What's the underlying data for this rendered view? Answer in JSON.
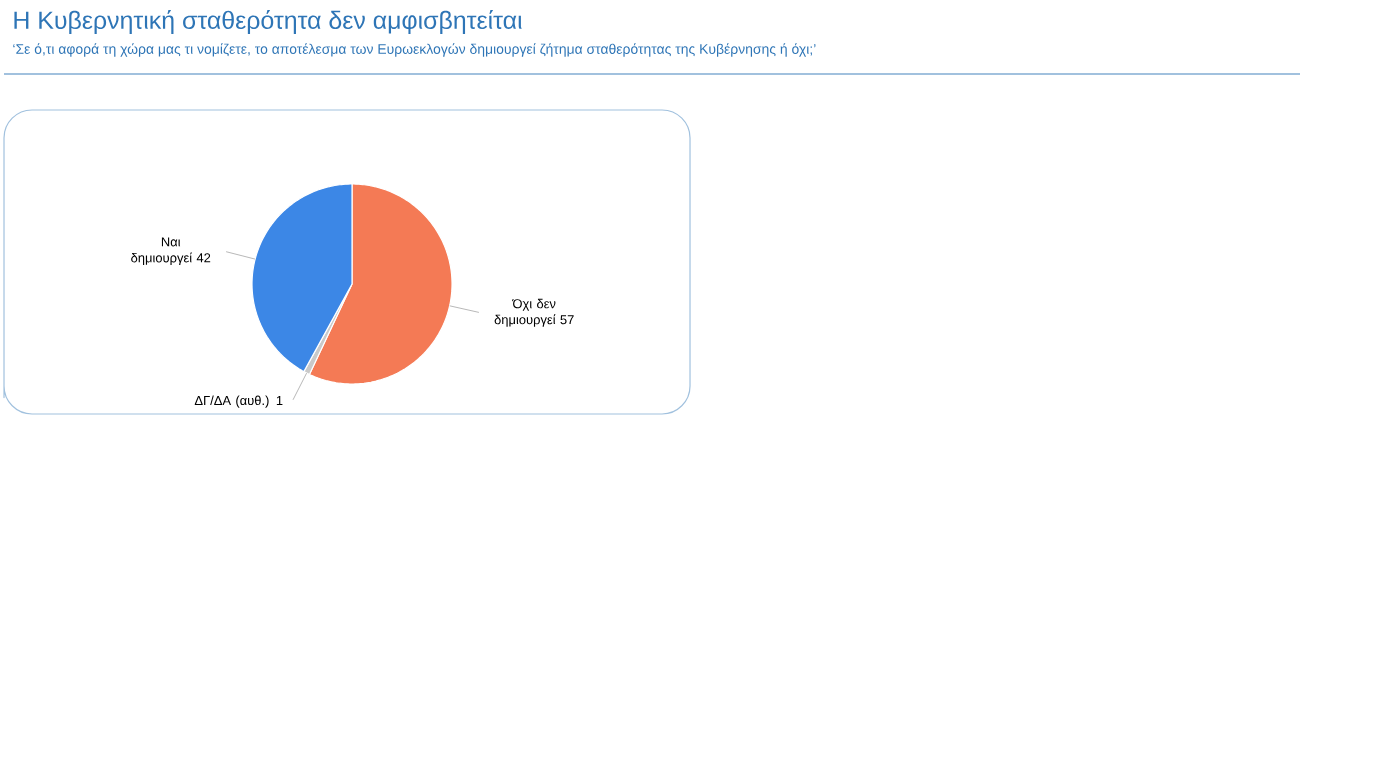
{
  "chart_data": {
    "type": "pie",
    "title": "Η Κυβερνητική σταθερότητα δεν αμφισβητείται",
    "subtitle": "‘Σε ό,τι αφορά τη χώρα μας τι νομίζετε, το αποτέλεσμα των Ευρωεκλογών δημιουργεί ζήτημα σταθερότητας της Κυβέρνησης ή όχι;’",
    "categories": [
      "Όχι δεν δημιουργεί",
      "ΔΓ/ΔΑ (αυθ.)",
      "Ναι δημιουργεί"
    ],
    "values": [
      57,
      1,
      42
    ],
    "colors": [
      "#f47a55",
      "#c9c9c9",
      "#3c87e6"
    ],
    "data_labels": true
  }
}
